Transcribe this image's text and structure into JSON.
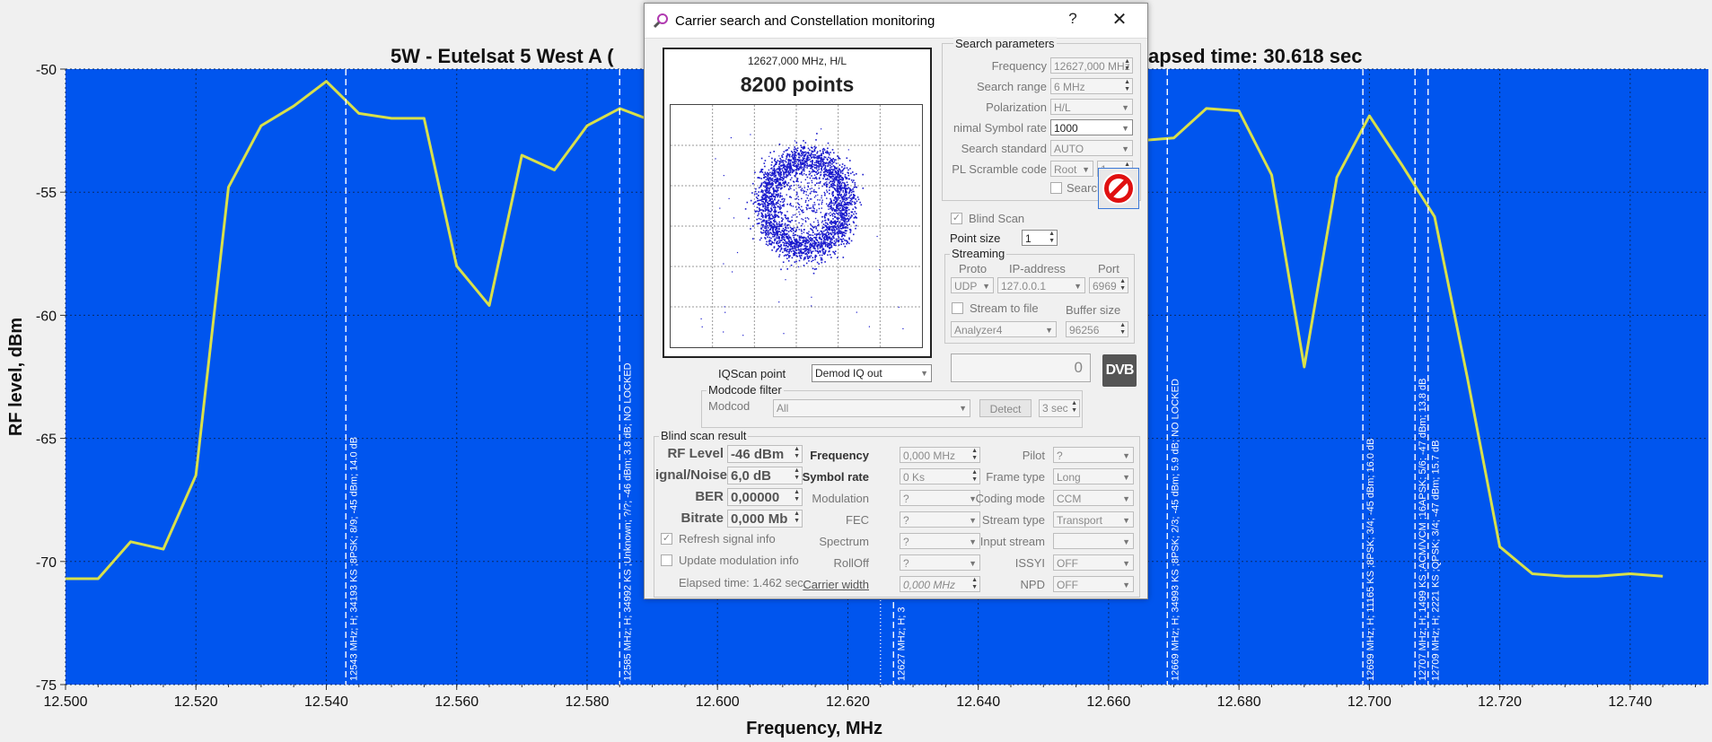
{
  "spectrum": {
    "title": "5W - Eutelsat 5 West A (",
    "title_tail": "apsed time: 30.618 sec",
    "xlabel": "Frequency, MHz",
    "ylabel": "RF level, dBm",
    "colors": {
      "plot_bg": "#0055ee",
      "trace": "#d8e04a",
      "marker": "#ffffff",
      "grid": "#0a2a66"
    }
  },
  "chart_data": {
    "type": "line",
    "x_ticks": [
      "12.500",
      "12.520",
      "12.540",
      "12.560",
      "12.580",
      "12.600",
      "12.620",
      "12.640",
      "12.660",
      "12.680",
      "12.700",
      "12.720",
      "12.740"
    ],
    "y_ticks": [
      "-50",
      "-55",
      "-60",
      "-65",
      "-70",
      "-75"
    ],
    "xlim": [
      12500,
      12752
    ],
    "ylim": [
      -75,
      -50
    ],
    "trace_left": [
      [
        12500,
        -70.7
      ],
      [
        12505,
        -70.7
      ],
      [
        12510,
        -69.2
      ],
      [
        12515,
        -69.5
      ],
      [
        12520,
        -66.5
      ],
      [
        12525,
        -54.8
      ],
      [
        12530,
        -52.3
      ],
      [
        12535,
        -51.5
      ],
      [
        12540,
        -50.5
      ],
      [
        12545,
        -51.8
      ],
      [
        12550,
        -52.0
      ],
      [
        12555,
        -52.0
      ],
      [
        12560,
        -58.0
      ],
      [
        12565,
        -59.6
      ],
      [
        12570,
        -53.5
      ],
      [
        12575,
        -54.1
      ],
      [
        12580,
        -52.3
      ],
      [
        12585,
        -51.6
      ],
      [
        12590,
        -52.1
      ]
    ],
    "trace_right": [
      [
        12660,
        -52.7
      ],
      [
        12665,
        -52.9
      ],
      [
        12670,
        -52.8
      ],
      [
        12675,
        -51.6
      ],
      [
        12680,
        -51.7
      ],
      [
        12685,
        -54.3
      ],
      [
        12690,
        -62.1
      ],
      [
        12695,
        -54.4
      ],
      [
        12700,
        -51.9
      ],
      [
        12705,
        -53.9
      ],
      [
        12710,
        -56.0
      ],
      [
        12715,
        -62.5
      ],
      [
        12720,
        -69.4
      ],
      [
        12725,
        -70.5
      ],
      [
        12730,
        -70.6
      ],
      [
        12735,
        -70.6
      ],
      [
        12740,
        -70.5
      ],
      [
        12745,
        -70.6
      ]
    ],
    "markers": [
      {
        "x": 12543,
        "label": "12543 MHz; H; 34193 KS ;8PSK; 8/9; -45 dBm; 14.0 dB",
        "style": "dashed"
      },
      {
        "x": 12585,
        "label": "12585 MHz; H; 34992 KS ;Unknown; ?/?; -46 dBm; 3.8 dB; NO LOCKED",
        "style": "dashed"
      },
      {
        "x": 12625,
        "label": "",
        "style": "dotted"
      },
      {
        "x": 12627,
        "label": "12627 MHz; H; 3",
        "style": "dashed"
      },
      {
        "x": 12669,
        "label": "12669 MHz; H; 34993 KS ;8PSK; 2/3; -45 dBm; 5.9 dB; NO LOCKED",
        "style": "dashed"
      },
      {
        "x": 12699,
        "label": "12699 MHz; H; 11165 KS ;8PSK; 3/4; -45 dBm; 16.0 dB",
        "style": "dashed"
      },
      {
        "x": 12707,
        "label": "12707 MHz; H; 1499 KS ;ACM/VCM ;16APSK; 5/6; -47 dBm; 13.8 dB",
        "style": "dashed"
      },
      {
        "x": 12709,
        "label": "12709 MHz; H; 2221 KS ;QPSK; 3/4; -47 dBm; 15.7 dB",
        "style": "dashed"
      }
    ]
  },
  "dialog": {
    "title": "Carrier search and Constellation monitoring",
    "help": "?",
    "close": "✕",
    "constellation": {
      "freq": "12627,000 MHz, H/L",
      "points": "8200 points"
    },
    "search_params": {
      "title": "Search parameters",
      "frequency_label": "Frequency",
      "frequency_value": "12627,000 MHz",
      "range_label": "Search range",
      "range_value": "6 MHz",
      "polarization_label": "Polarization",
      "polarization_value": "H/L",
      "symrate_label": "nimal Symbol rate",
      "symrate_value": "1000",
      "standard_label": "Search standard",
      "standard_value": "AUTO",
      "pls_label": "PL Scramble code",
      "pls_mode": "Root",
      "pls_value": "1",
      "search_pls_label": "Search PLS cc"
    },
    "blind_scan_label": "Blind Scan",
    "point_size_label": "Point size",
    "point_size_value": "1",
    "streaming": {
      "title": "Streaming",
      "proto_label": "Proto",
      "ip_label": "IP-address",
      "port_label": "Port",
      "proto_value": "UDP",
      "ip_value": "127.0.0.1",
      "port_value": "6969",
      "stream_to_file_label": "Stream to file",
      "buffer_label": "Buffer size",
      "analyzer_value": "Analyzer4",
      "buffer_value": "96256"
    },
    "counter_value": "0",
    "dvb_logo": "DVB",
    "iqscan_label": "IQScan point",
    "iqscan_value": "Demod IQ out",
    "modcode": {
      "title": "Modcode filter",
      "label": "Modcod",
      "value": "All",
      "detect": "Detect",
      "seconds": "3 sec"
    },
    "result": {
      "title": "Blind scan result",
      "rf_label": "RF Level",
      "rf_value": "-46 dBm",
      "sn_label": "ignal/Noise",
      "sn_value": "6,0 dB",
      "ber_label": "BER",
      "ber_value": "0,00000",
      "bitrate_label": "Bitrate",
      "bitrate_value": "0,000 Mb",
      "freq_label": "Frequency",
      "freq_value": "0,000 MHz",
      "symrate_label": "Symbol rate",
      "symrate_value": "0 Ks",
      "mod_label": "Modulation",
      "mod_value": "?",
      "fec_label": "FEC",
      "fec_value": "?",
      "spectrum_label": "Spectrum",
      "spectrum_value": "?",
      "rolloff_label": "RollOff",
      "rolloff_value": "?",
      "carrier_width_label": "Carrier width",
      "carrier_width_value": "0,000 MHz",
      "pilot_label": "Pilot",
      "pilot_value": "?",
      "frame_label": "Frame type",
      "frame_value": "Long",
      "coding_label": "Coding mode",
      "coding_value": "CCM",
      "stream_label": "Stream type",
      "stream_value": "Transport",
      "input_label": "Input stream",
      "input_value": "",
      "issyi_label": "ISSYI",
      "issyi_value": "OFF",
      "npd_label": "NPD",
      "npd_value": "OFF",
      "refresh_label": "Refresh signal info",
      "update_label": "Update modulation info",
      "elapsed": "Elapsed time: 1.462 sec"
    }
  }
}
